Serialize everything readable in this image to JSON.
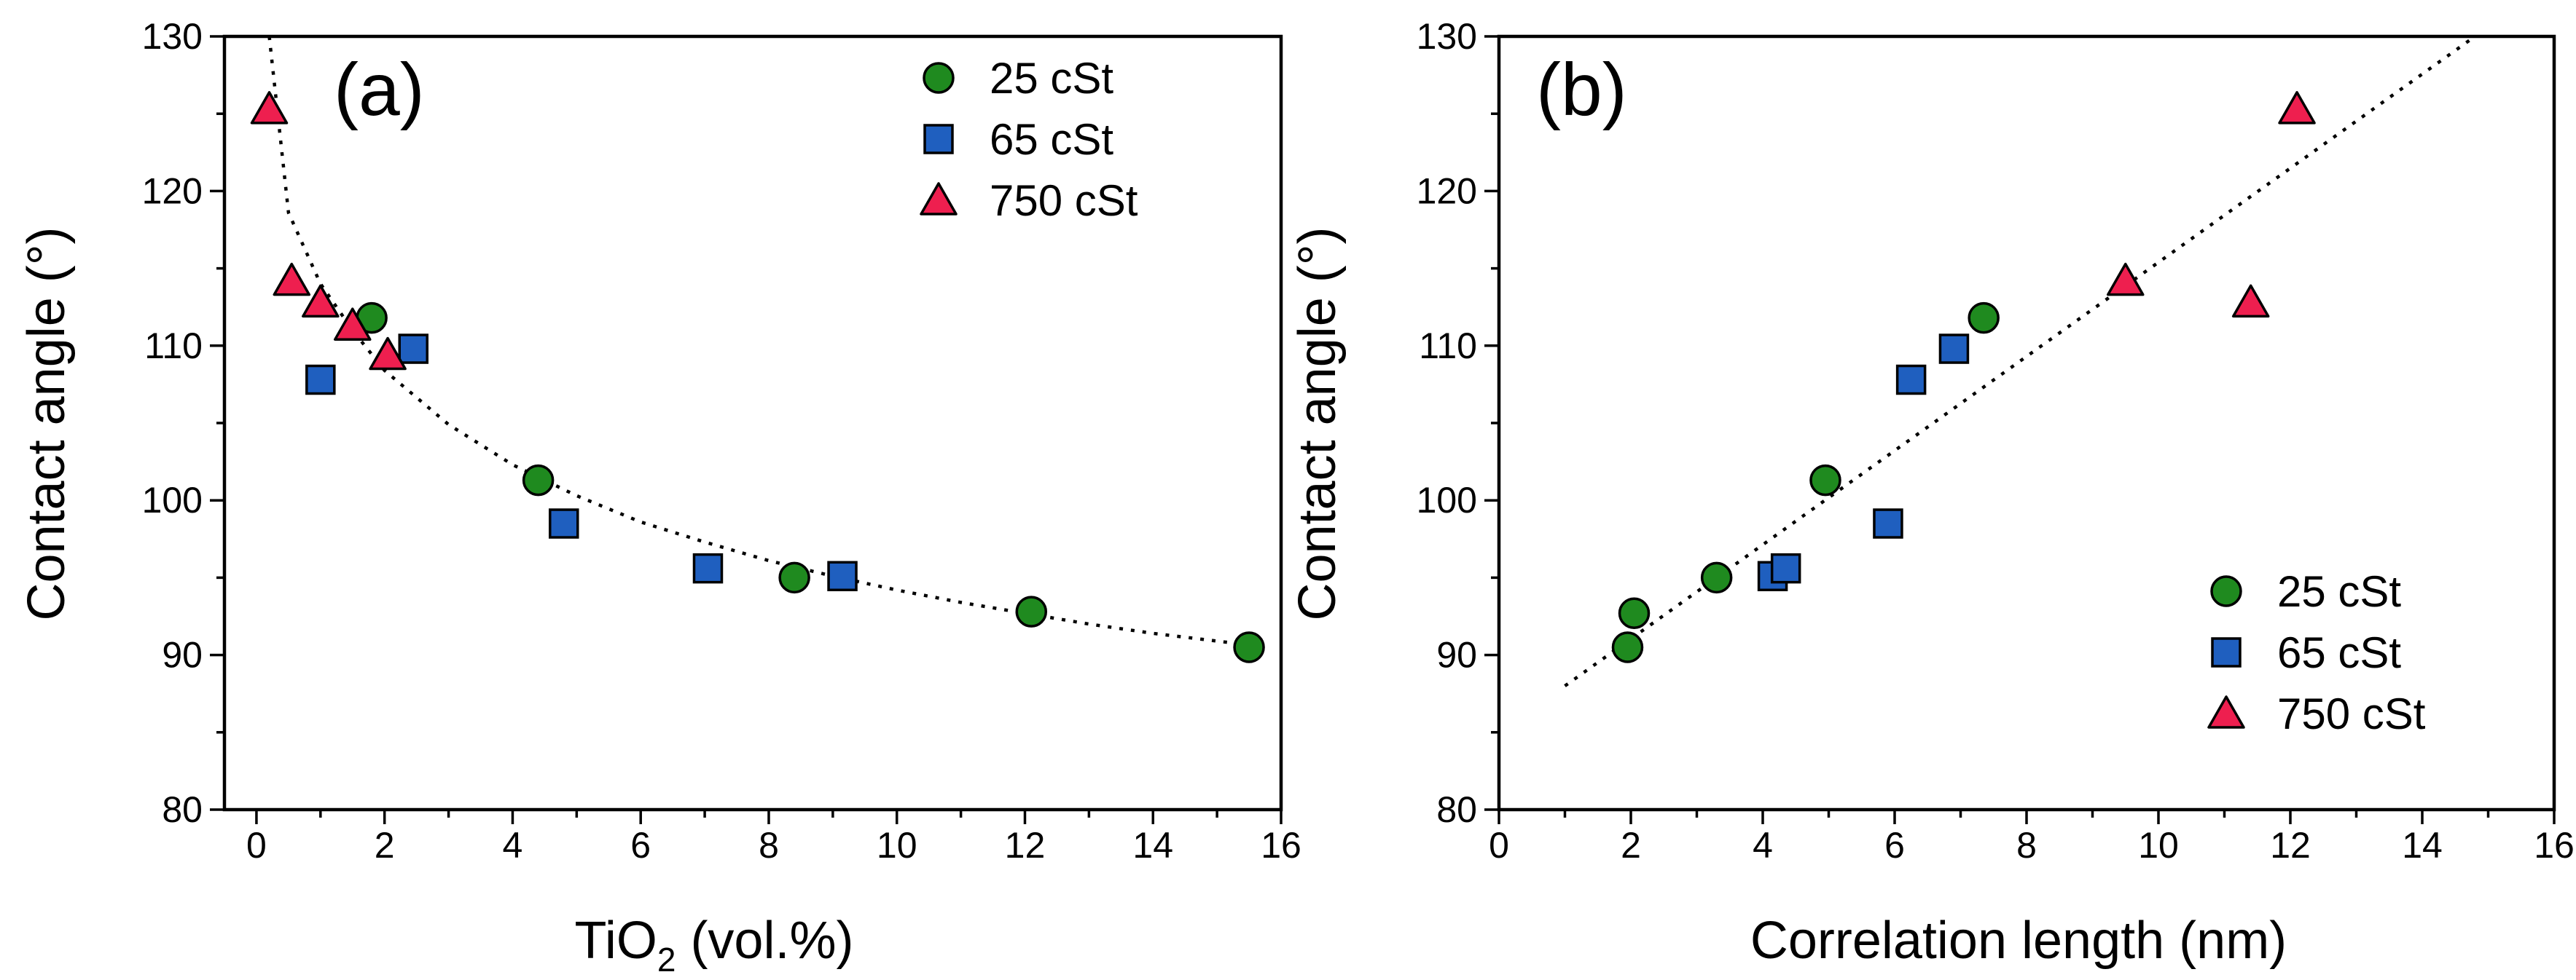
{
  "chart_data": [
    {
      "type": "scatter",
      "panel_label": "(a)",
      "xlabel_main": "TiO",
      "xlabel_sub": "2",
      "xlabel_rest": " (vol.%)",
      "ylabel": "Contact angle (°)",
      "xlim": [
        -0.5,
        16
      ],
      "ylim": [
        80,
        130
      ],
      "xticks": [
        0,
        2,
        4,
        6,
        8,
        10,
        12,
        14,
        16
      ],
      "yticks": [
        80,
        90,
        100,
        110,
        120,
        130
      ],
      "legend_position": "top-right",
      "fit": {
        "style": "dotted",
        "description": "power-law fit",
        "x": [
          0.2,
          0.5,
          1,
          1.5,
          2,
          3,
          4,
          5,
          6,
          7,
          8,
          9,
          10,
          11,
          12,
          13,
          14,
          15,
          15.6
        ],
        "y": [
          130,
          118.6,
          114.0,
          111.0,
          108.4,
          104.9,
          102.3,
          100.3,
          98.6,
          97.3,
          96.1,
          95.1,
          94.2,
          93.4,
          92.7,
          92.0,
          91.4,
          90.9,
          90.6
        ]
      },
      "series": [
        {
          "name": "25 cSt",
          "marker": "circle",
          "color": "#1f8a1f",
          "x": [
            1.8,
            4.4,
            8.4,
            12.1,
            15.5
          ],
          "y": [
            111.8,
            101.3,
            95.0,
            92.8,
            90.5
          ]
        },
        {
          "name": "65 cSt",
          "marker": "square",
          "color": "#1f5fbf",
          "x": [
            1.0,
            2.45,
            4.8,
            7.05,
            9.15
          ],
          "y": [
            107.8,
            109.8,
            98.5,
            95.6,
            95.1
          ]
        },
        {
          "name": "750 cSt",
          "marker": "triangle",
          "color": "#ee1f4f",
          "x": [
            0.2,
            0.55,
            1.0,
            1.5,
            2.05
          ],
          "y": [
            125.3,
            114.2,
            112.8,
            111.3,
            109.4
          ]
        }
      ]
    },
    {
      "type": "scatter",
      "panel_label": "(b)",
      "xlabel": "Correlation length (nm)",
      "ylabel": "Contact angle (°)",
      "xlim": [
        0,
        16
      ],
      "ylim": [
        80,
        130
      ],
      "xticks": [
        0,
        2,
        4,
        6,
        8,
        10,
        12,
        14,
        16
      ],
      "yticks": [
        80,
        90,
        100,
        110,
        120,
        130
      ],
      "legend_position": "bottom-right",
      "fit": {
        "style": "dotted",
        "description": "linear fit",
        "x": [
          1.0,
          14.8
        ],
        "y": [
          88.0,
          130.0
        ]
      },
      "series": [
        {
          "name": "25 cSt",
          "marker": "circle",
          "color": "#1f8a1f",
          "x": [
            1.95,
            2.05,
            3.3,
            4.95,
            7.35
          ],
          "y": [
            90.5,
            92.7,
            95.0,
            101.3,
            111.8
          ]
        },
        {
          "name": "65 cSt",
          "marker": "square",
          "color": "#1f5fbf",
          "x": [
            4.15,
            4.35,
            5.9,
            6.25,
            6.9
          ],
          "y": [
            95.1,
            95.6,
            98.5,
            107.8,
            109.8
          ]
        },
        {
          "name": "750 cSt",
          "marker": "triangle",
          "color": "#ee1f4f",
          "x": [
            9.5,
            11.4,
            12.1
          ],
          "y": [
            114.2,
            112.8,
            125.3
          ]
        }
      ]
    }
  ]
}
